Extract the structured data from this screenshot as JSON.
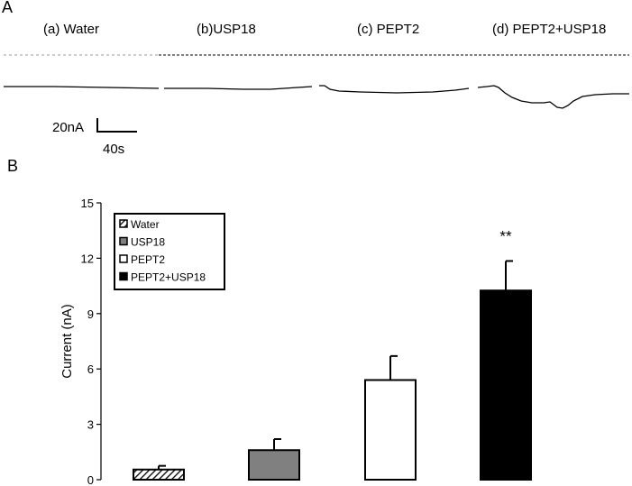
{
  "panel_a": {
    "label": "A",
    "traces": [
      {
        "label": "(a) Water"
      },
      {
        "label": "(b)USP18"
      },
      {
        "label": "(c) PEPT2"
      },
      {
        "label": "(d) PEPT2+USP18"
      }
    ],
    "scale_bar": {
      "current": "20nA",
      "time": "40s"
    }
  },
  "panel_b": {
    "label": "B"
  },
  "chart_data": {
    "type": "bar",
    "title": "",
    "xlabel": "",
    "ylabel": "Current (nA)",
    "ylim": [
      0,
      15
    ],
    "yticks": [
      0,
      3,
      6,
      9,
      12,
      15
    ],
    "grid": false,
    "legend_position": "top-left",
    "categories": [
      "Water",
      "USP18",
      "PEPT2",
      "PEPT2+USP18"
    ],
    "values": [
      0.55,
      1.6,
      5.4,
      10.25
    ],
    "errors": [
      0.2,
      0.6,
      1.3,
      1.6
    ],
    "fills": [
      "hatch",
      "#808080",
      "#ffffff",
      "#000000"
    ],
    "annotations": [
      {
        "category": "PEPT2+USP18",
        "text": "**"
      }
    ]
  }
}
